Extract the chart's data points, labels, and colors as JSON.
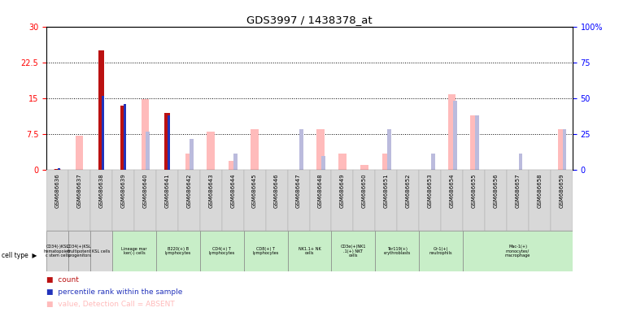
{
  "title": "GDS3997 / 1438378_at",
  "samples": [
    "GSM686636",
    "GSM686637",
    "GSM686638",
    "GSM686639",
    "GSM686640",
    "GSM686641",
    "GSM686642",
    "GSM686643",
    "GSM686644",
    "GSM686645",
    "GSM686646",
    "GSM686647",
    "GSM686648",
    "GSM686649",
    "GSM686650",
    "GSM686651",
    "GSM686652",
    "GSM686653",
    "GSM686654",
    "GSM686655",
    "GSM686656",
    "GSM686657",
    "GSM686658",
    "GSM686659"
  ],
  "count": [
    0.3,
    0,
    25.0,
    13.5,
    0,
    12.0,
    0,
    0,
    0,
    0,
    0,
    0,
    0,
    0,
    0,
    0,
    0,
    0,
    0,
    0,
    0,
    0,
    0,
    0
  ],
  "percentile": [
    0.4,
    0,
    15.5,
    13.8,
    0,
    11.5,
    0,
    0,
    0,
    0,
    0,
    0,
    0,
    0,
    0,
    0,
    0,
    0,
    0,
    0,
    0,
    0,
    0,
    0
  ],
  "value_absent": [
    0.3,
    7.2,
    0,
    0,
    14.8,
    0,
    3.5,
    8.0,
    2.0,
    8.5,
    0,
    0,
    8.5,
    3.5,
    1.0,
    3.5,
    0,
    0,
    15.8,
    11.5,
    0,
    0,
    0,
    8.5
  ],
  "rank_absent": [
    0.1,
    0,
    0,
    0,
    8.0,
    0,
    6.5,
    0,
    3.5,
    0,
    0,
    8.5,
    3.0,
    0,
    0,
    8.5,
    0,
    3.5,
    14.5,
    11.5,
    0,
    3.5,
    0,
    8.5
  ],
  "ylim_left": [
    0,
    30
  ],
  "ylim_right": [
    0,
    100
  ],
  "yticks_left": [
    0,
    7.5,
    15,
    22.5,
    30
  ],
  "ytick_labels_left": [
    "0",
    "7.5",
    "15",
    "22.5",
    "30"
  ],
  "yticks_right": [
    0,
    25,
    50,
    75,
    100
  ],
  "ytick_labels_right": [
    "0",
    "25",
    "50",
    "75",
    "100%"
  ],
  "color_count": "#bb1111",
  "color_percentile": "#2233bb",
  "color_value_absent": "#ffbbbb",
  "color_rank_absent": "#bbbbdd",
  "cell_groups": [
    {
      "label": "CD34(-)KSL\nhematopoieti\nc stem cells",
      "start": 0,
      "end": 1,
      "color": "#d8d8d8"
    },
    {
      "label": "CD34(+)KSL\nmultipotent\nprogenitors",
      "start": 1,
      "end": 2,
      "color": "#d8d8d8"
    },
    {
      "label": "KSL cells",
      "start": 2,
      "end": 3,
      "color": "#d8d8d8"
    },
    {
      "label": "Lineage mar\nker(-) cells",
      "start": 3,
      "end": 5,
      "color": "#c8eec8"
    },
    {
      "label": "B220(+) B\nlymphocytes",
      "start": 5,
      "end": 7,
      "color": "#c8eec8"
    },
    {
      "label": "CD4(+) T\nlymphocytes",
      "start": 7,
      "end": 9,
      "color": "#c8eec8"
    },
    {
      "label": "CD8(+) T\nlymphocytes",
      "start": 9,
      "end": 11,
      "color": "#c8eec8"
    },
    {
      "label": "NK1.1+ NK\ncells",
      "start": 11,
      "end": 13,
      "color": "#c8eec8"
    },
    {
      "label": "CD3e(+)NK1\n.1(+) NKT\ncells",
      "start": 13,
      "end": 15,
      "color": "#c8eec8"
    },
    {
      "label": "Ter119(+)\nerythroblasts",
      "start": 15,
      "end": 17,
      "color": "#c8eec8"
    },
    {
      "label": "Gr-1(+)\nneutrophils",
      "start": 17,
      "end": 19,
      "color": "#c8eec8"
    },
    {
      "label": "Mac-1(+)\nmonocytes/\nmacrophage",
      "start": 19,
      "end": 24,
      "color": "#c8eec8"
    }
  ]
}
